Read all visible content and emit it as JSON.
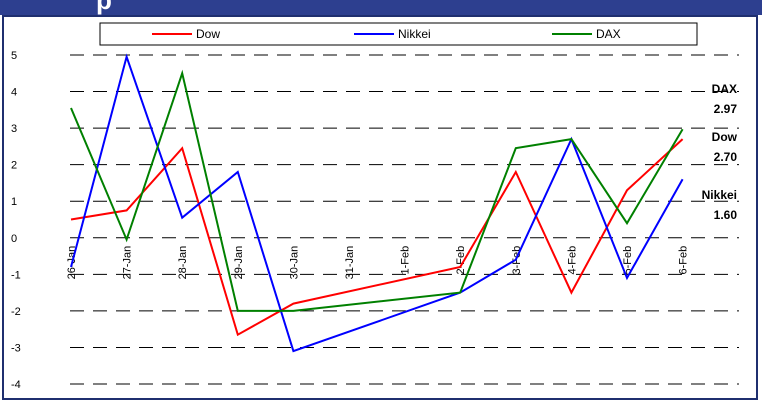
{
  "header": {
    "title": "p"
  },
  "chart_data": {
    "type": "line",
    "categories": [
      "26-Jan",
      "27-Jan",
      "28-Jan",
      "29-Jan",
      "30-Jan",
      "31-Jan",
      "1-Feb",
      "2-Feb",
      "3-Feb",
      "4-Feb",
      "5-Feb",
      "6-Feb"
    ],
    "ylim": [
      -4,
      5
    ],
    "yticks": [
      -4,
      -3,
      -2,
      -1,
      0,
      1,
      2,
      3,
      4,
      5
    ],
    "grid": "horizontal dashed",
    "legend": "top",
    "series": [
      {
        "name": "Dow",
        "color": "#ff0000",
        "values": [
          0.5,
          0.75,
          2.45,
          -2.65,
          -1.8,
          null,
          null,
          -0.8,
          1.8,
          -1.5,
          1.3,
          2.7
        ]
      },
      {
        "name": "Nikkei",
        "color": "#0000ff",
        "values": [
          -0.8,
          4.95,
          0.55,
          1.8,
          -3.1,
          null,
          null,
          -1.5,
          -0.6,
          2.7,
          -1.1,
          1.6
        ]
      },
      {
        "name": "DAX",
        "color": "#008000",
        "values": [
          3.55,
          -0.05,
          4.5,
          -2.0,
          -2.0,
          null,
          null,
          -1.5,
          2.45,
          2.7,
          0.4,
          2.97
        ]
      }
    ],
    "annotations": [
      {
        "series": "DAX",
        "name": "DAX",
        "value": "2.97"
      },
      {
        "series": "Dow",
        "name": "Dow",
        "value": "2.70"
      },
      {
        "series": "Nikkei",
        "name": "Nikkei",
        "value": "1.60"
      }
    ]
  }
}
